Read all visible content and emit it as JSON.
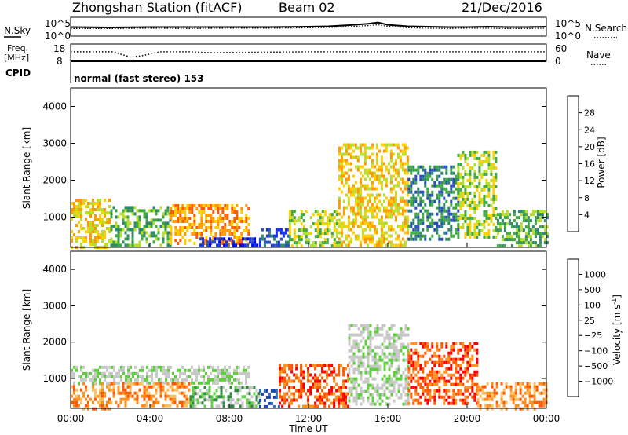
{
  "header": {
    "station": "Zhongshan Station (fitACF)",
    "beam": "Beam 02",
    "date": "21/Dec/2016",
    "mode": "normal (fast stereo) 153"
  },
  "chart_data": [
    {
      "type": "line",
      "panel": "noise",
      "left_label": "N.Sky",
      "right_label": "N.Search",
      "left_ticks": [
        "10^5",
        "10^0"
      ],
      "right_ticks": [
        "10^5",
        "10^0"
      ],
      "log_scale": true,
      "series": [
        {
          "name": "N.Sky",
          "style": "solid",
          "x": [
            0,
            2,
            4,
            6,
            8,
            10,
            12,
            13,
            14,
            15,
            15.5,
            16,
            17,
            18,
            19,
            20,
            21,
            22,
            23,
            24
          ],
          "values": [
            2.4,
            2.3,
            2.4,
            2.4,
            2.4,
            2.4,
            2.5,
            2.6,
            2.9,
            3.3,
            3.6,
            3.0,
            2.6,
            2.5,
            2.4,
            2.4,
            2.5,
            2.4,
            2.4,
            2.5
          ]
        },
        {
          "name": "N.Search",
          "style": "dotted",
          "x": [
            0,
            2,
            4,
            6,
            8,
            10,
            12,
            13,
            14,
            15,
            15.5,
            16,
            17,
            18,
            19,
            20,
            21,
            22,
            23,
            24
          ],
          "values": [
            2.0,
            2.0,
            2.1,
            2.0,
            2.1,
            2.1,
            2.2,
            2.3,
            2.5,
            2.8,
            3.0,
            2.6,
            2.2,
            2.1,
            2.0,
            2.1,
            2.1,
            2.0,
            2.0,
            2.1
          ]
        }
      ]
    },
    {
      "type": "line",
      "panel": "frequency",
      "left_label_1": "Freq.",
      "left_label_2": "[MHz]",
      "left_ticks": [
        "18",
        "8"
      ],
      "right_label": "Nave",
      "right_ticks": [
        "60",
        "0"
      ],
      "cpid_label": "CPID",
      "series": [
        {
          "name": "Freq.",
          "style": "solid",
          "x": [
            0,
            24
          ],
          "values": [
            8,
            8
          ]
        },
        {
          "name": "Nave",
          "style": "dotted",
          "x": [
            0,
            2.2,
            2.5,
            3,
            3.5,
            4,
            4.5,
            6,
            7,
            12,
            16,
            20,
            24
          ],
          "values": [
            33,
            33,
            25,
            15,
            18,
            25,
            33,
            33,
            30,
            33,
            33,
            33,
            33
          ]
        }
      ]
    },
    {
      "type": "heatmap",
      "panel": "power",
      "ylabel": "Slant Range [km]",
      "ylim": [
        180,
        4500
      ],
      "yticks": [
        "1000",
        "2000",
        "3000",
        "4000"
      ],
      "ytick_values": [
        1000,
        2000,
        3000,
        4000
      ],
      "colorbar_label": "Power [dB]",
      "colorbar_ticks": [
        "28",
        "24",
        "20",
        "16",
        "12",
        "8",
        "4"
      ],
      "colorbar_colors": [
        "#ff0000",
        "#ff5a00",
        "#ff9b00",
        "#ffd000",
        "#b7de2e",
        "#3fa83f",
        "#2f8866",
        "#2850b8",
        "#1530e6",
        "#0000ff"
      ],
      "regions": [
        {
          "t0": 0.0,
          "t1": 2.0,
          "r0": 200,
          "r1": 1500,
          "level": 3
        },
        {
          "t0": 2.0,
          "t1": 5.0,
          "r0": 250,
          "r1": 1300,
          "level": 5
        },
        {
          "t0": 5.0,
          "t1": 9.0,
          "r0": 300,
          "r1": 1350,
          "level": 2
        },
        {
          "t0": 6.5,
          "t1": 9.5,
          "r0": 200,
          "r1": 450,
          "level": 8
        },
        {
          "t0": 9.5,
          "t1": 11.0,
          "r0": 200,
          "r1": 700,
          "level": 7
        },
        {
          "t0": 11.0,
          "t1": 13.5,
          "r0": 200,
          "r1": 1200,
          "level": 4
        },
        {
          "t0": 13.5,
          "t1": 17.0,
          "r0": 200,
          "r1": 3000,
          "level": 3
        },
        {
          "t0": 17.0,
          "t1": 19.5,
          "r0": 400,
          "r1": 2400,
          "level": 6
        },
        {
          "t0": 19.5,
          "t1": 21.5,
          "r0": 500,
          "r1": 2800,
          "level": 4
        },
        {
          "t0": 21.5,
          "t1": 24.0,
          "r0": 200,
          "r1": 1200,
          "level": 5
        }
      ]
    },
    {
      "type": "heatmap",
      "panel": "velocity",
      "ylabel": "Slant Range [km]",
      "ylim": [
        180,
        4500
      ],
      "yticks": [
        "1000",
        "2000",
        "3000",
        "4000"
      ],
      "ytick_values": [
        1000,
        2000,
        3000,
        4000
      ],
      "xticks": [
        "00:00",
        "04:00",
        "08:00",
        "12:00",
        "16:00",
        "20:00",
        "00:00"
      ],
      "xtick_values": [
        0,
        4,
        8,
        12,
        16,
        20,
        24
      ],
      "xlabel": "Time UT",
      "colorbar_label": "Velocity [m s",
      "colorbar_label_sup": "-1",
      "colorbar_label_tail": "]",
      "colorbar_ticks": [
        "1000",
        "500",
        "100",
        "25",
        "−25",
        "−100",
        "−500",
        "−1000"
      ],
      "colorbar_colors": [
        "#1a3fb5",
        "#2f6db8",
        "#2f8a3f",
        "#5fcf3f",
        "#c8c8c8",
        "#c8c8c8",
        "#ffc060",
        "#ff9020",
        "#ff5a00",
        "#ff0000"
      ],
      "regions": [
        {
          "t0": 0.0,
          "t1": 2.0,
          "r0": 200,
          "r1": 900,
          "level": 7
        },
        {
          "t0": 0.0,
          "t1": 9.0,
          "r0": 900,
          "r1": 1350,
          "level": 4
        },
        {
          "t0": 2.0,
          "t1": 6.0,
          "r0": 250,
          "r1": 900,
          "level": 7
        },
        {
          "t0": 6.0,
          "t1": 9.5,
          "r0": 250,
          "r1": 800,
          "level": 3
        },
        {
          "t0": 9.5,
          "t1": 10.5,
          "r0": 200,
          "r1": 700,
          "level": 0
        },
        {
          "t0": 10.5,
          "t1": 14.0,
          "r0": 200,
          "r1": 1400,
          "level": 8
        },
        {
          "t0": 14.0,
          "t1": 17.0,
          "r0": 300,
          "r1": 2500,
          "level": 4
        },
        {
          "t0": 17.0,
          "t1": 20.5,
          "r0": 300,
          "r1": 2000,
          "level": 8
        },
        {
          "t0": 20.5,
          "t1": 24.0,
          "r0": 200,
          "r1": 900,
          "level": 7
        }
      ]
    }
  ]
}
